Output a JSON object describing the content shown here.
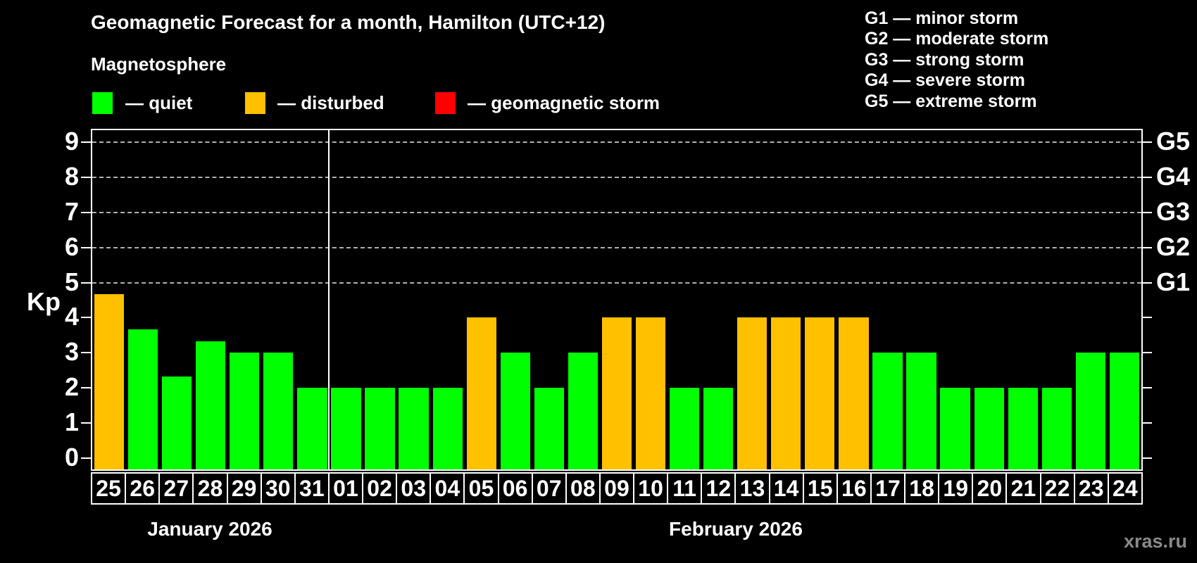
{
  "header": {
    "title": "Geomagnetic Forecast for a month, Hamilton (UTC+12)",
    "subtitle": "Magnetosphere",
    "legend": [
      {
        "label": "— quiet",
        "color": "#00ff00"
      },
      {
        "label": "— disturbed",
        "color": "#ffc000"
      },
      {
        "label": "— geomagnetic storm",
        "color": "#ff0000"
      }
    ],
    "g_scale_legend": [
      "G1 — minor storm",
      "G2 — moderate storm",
      "G3 — strong storm",
      "G4 — severe storm",
      "G5 — extreme storm"
    ]
  },
  "chart_data": {
    "type": "bar",
    "ylabel": "Kp",
    "ylim": [
      0,
      9
    ],
    "y_ticks": [
      0,
      1,
      2,
      3,
      4,
      5,
      6,
      7,
      8,
      9
    ],
    "gridlines_at": [
      5,
      6,
      7,
      8,
      9
    ],
    "grid_style": "dashed, storm levels only",
    "right_axis_labels": [
      {
        "kp": 5,
        "label": "G1"
      },
      {
        "kp": 6,
        "label": "G2"
      },
      {
        "kp": 7,
        "label": "G3"
      },
      {
        "kp": 8,
        "label": "G4"
      },
      {
        "kp": 9,
        "label": "G5"
      }
    ],
    "months": [
      {
        "label": "January 2026",
        "days": 7
      },
      {
        "label": "February 2026",
        "days": 24
      }
    ],
    "colors": {
      "quiet": "#00ff00",
      "disturbed": "#ffc000",
      "storm": "#ff0000"
    },
    "series": [
      {
        "day": "25",
        "value": 4.67,
        "status": "disturbed"
      },
      {
        "day": "26",
        "value": 3.67,
        "status": "quiet"
      },
      {
        "day": "27",
        "value": 2.33,
        "status": "quiet"
      },
      {
        "day": "28",
        "value": 3.33,
        "status": "quiet"
      },
      {
        "day": "29",
        "value": 3.0,
        "status": "quiet"
      },
      {
        "day": "30",
        "value": 3.0,
        "status": "quiet"
      },
      {
        "day": "31",
        "value": 2.0,
        "status": "quiet"
      },
      {
        "day": "01",
        "value": 2.0,
        "status": "quiet"
      },
      {
        "day": "02",
        "value": 2.0,
        "status": "quiet"
      },
      {
        "day": "03",
        "value": 2.0,
        "status": "quiet"
      },
      {
        "day": "04",
        "value": 2.0,
        "status": "quiet"
      },
      {
        "day": "05",
        "value": 4.0,
        "status": "disturbed"
      },
      {
        "day": "06",
        "value": 3.0,
        "status": "quiet"
      },
      {
        "day": "07",
        "value": 2.0,
        "status": "quiet"
      },
      {
        "day": "08",
        "value": 3.0,
        "status": "quiet"
      },
      {
        "day": "09",
        "value": 4.0,
        "status": "disturbed"
      },
      {
        "day": "10",
        "value": 4.0,
        "status": "disturbed"
      },
      {
        "day": "11",
        "value": 2.0,
        "status": "quiet"
      },
      {
        "day": "12",
        "value": 2.0,
        "status": "quiet"
      },
      {
        "day": "13",
        "value": 4.0,
        "status": "disturbed"
      },
      {
        "day": "14",
        "value": 4.0,
        "status": "disturbed"
      },
      {
        "day": "15",
        "value": 4.0,
        "status": "disturbed"
      },
      {
        "day": "16",
        "value": 4.0,
        "status": "disturbed"
      },
      {
        "day": "17",
        "value": 3.0,
        "status": "quiet"
      },
      {
        "day": "18",
        "value": 3.0,
        "status": "quiet"
      },
      {
        "day": "19",
        "value": 2.0,
        "status": "quiet"
      },
      {
        "day": "20",
        "value": 2.0,
        "status": "quiet"
      },
      {
        "day": "21",
        "value": 2.0,
        "status": "quiet"
      },
      {
        "day": "22",
        "value": 2.0,
        "status": "quiet"
      },
      {
        "day": "23",
        "value": 3.0,
        "status": "quiet"
      },
      {
        "day": "24",
        "value": 3.0,
        "status": "quiet"
      }
    ]
  },
  "watermark": "xras.ru"
}
